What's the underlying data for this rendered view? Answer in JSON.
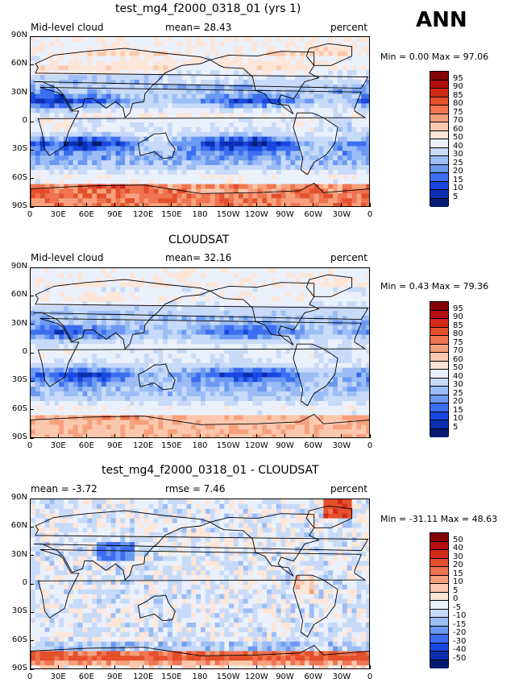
{
  "season_label": "ANN",
  "colors": {
    "abs_scale": [
      "#061c73",
      "#0b2fb0",
      "#1947e0",
      "#3d6ef0",
      "#6c99f2",
      "#9cbdf5",
      "#c7daf8",
      "#ebf1fc",
      "#fde6d8",
      "#fbc8ad",
      "#f6a07d",
      "#ef7450",
      "#e44f2c",
      "#d12b17",
      "#b31010",
      "#820404"
    ],
    "diff_scale": [
      "#061c73",
      "#0b2fb0",
      "#1947e0",
      "#3d6ef0",
      "#6c99f2",
      "#9cbdf5",
      "#c7daf8",
      "#ebf1fc",
      "#fde6d8",
      "#fbc8ad",
      "#f6a07d",
      "#ef7450",
      "#e44f2c",
      "#d12b17",
      "#b31010",
      "#820404"
    ]
  },
  "chart_data": [
    {
      "type": "heatmap",
      "title": "test_mg4_f2000_0318_01 (yrs 1)",
      "left_label": "Mid-level cloud",
      "center_label": "mean=  28.43",
      "units": "percent",
      "mean": 28.43,
      "min_max": "Min =    0.00 Max =   97.06",
      "min": 0.0,
      "max": 97.06,
      "y_ticks": [
        "90N",
        "60N",
        "30N",
        "0",
        "30S",
        "60S",
        "90S"
      ],
      "x_ticks": [
        "0",
        "30E",
        "60E",
        "90E",
        "120E",
        "150E",
        "180",
        "150W",
        "120W",
        "90W",
        "60W",
        "30W",
        "0"
      ],
      "colorbar_labels": [
        "95",
        "90",
        "85",
        "80",
        "75",
        "70",
        "60",
        "50",
        "40",
        "30",
        "25",
        "20",
        "15",
        "10",
        "5"
      ]
    },
    {
      "type": "heatmap",
      "title": "CLOUDSAT",
      "left_label": "Mid-level cloud",
      "center_label": "mean=  32.16",
      "units": "percent",
      "mean": 32.16,
      "min_max": "Min =    0.43 Max =   79.36",
      "min": 0.43,
      "max": 79.36,
      "y_ticks": [
        "90N",
        "60N",
        "30N",
        "0",
        "30S",
        "60S",
        "90S"
      ],
      "x_ticks": [
        "0",
        "30E",
        "60E",
        "90E",
        "120E",
        "150E",
        "180",
        "150W",
        "120W",
        "90W",
        "60W",
        "30W",
        "0"
      ],
      "colorbar_labels": [
        "95",
        "90",
        "85",
        "80",
        "75",
        "70",
        "60",
        "50",
        "40",
        "30",
        "25",
        "20",
        "15",
        "10",
        "5"
      ]
    },
    {
      "type": "heatmap",
      "title": "test_mg4_f2000_0318_01 - CLOUDSAT",
      "left_label": "mean =  -3.72",
      "center_label": "rmse =   7.46",
      "units": "percent",
      "mean": -3.72,
      "rmse": 7.46,
      "min_max": "Min = -31.11 Max =   48.63",
      "min": -31.11,
      "max": 48.63,
      "y_ticks": [
        "90N",
        "60N",
        "30N",
        "0",
        "30S",
        "60S",
        "90S"
      ],
      "x_ticks": [
        "0",
        "30E",
        "60E",
        "90E",
        "120E",
        "150E",
        "180",
        "150W",
        "120W",
        "90W",
        "60W",
        "30W",
        "0"
      ],
      "colorbar_labels": [
        "50",
        "40",
        "30",
        "20",
        "15",
        "10",
        "5",
        "0",
        "-5",
        "-10",
        "-15",
        "-20",
        "-30",
        "-40",
        "-50"
      ]
    }
  ]
}
